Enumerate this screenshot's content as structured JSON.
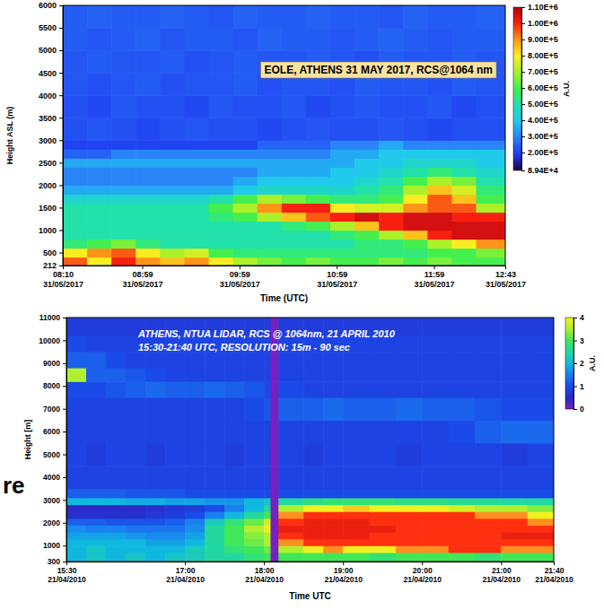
{
  "chart_data": [
    {
      "type": "heatmap",
      "title": "EOLE, ATHENS 31 MAY 2017, RCS@1064 nm",
      "x_label": "Time (UTC)",
      "y_label": "Height ASL (m)",
      "xlim": [
        "2017-05-31 08:10",
        "2017-05-31 12:43"
      ],
      "xticks": [
        {
          "value": "2017-05-31 08:10",
          "label": "08:10\n31/05/2017"
        },
        {
          "value": "2017-05-31 08:59",
          "label": "08:59\n31/05/2017"
        },
        {
          "value": "2017-05-31 09:59",
          "label": "09:59\n31/05/2017"
        },
        {
          "value": "2017-05-31 10:59",
          "label": "10:59\n31/05/2017"
        },
        {
          "value": "2017-05-31 11:59",
          "label": "11:59\n31/05/2017"
        },
        {
          "value": "2017-05-31 12:43",
          "label": "12:43\n31/05/2017"
        }
      ],
      "ylim": [
        212,
        6000
      ],
      "yticks": [
        212,
        500,
        1000,
        1500,
        2000,
        2500,
        3000,
        3500,
        4000,
        4500,
        5000,
        5500,
        6000
      ],
      "x": [
        "2017-05-31 08:10",
        "2017-05-31 08:25",
        "2017-05-31 08:40",
        "2017-05-31 08:55",
        "2017-05-31 09:10",
        "2017-05-31 09:25",
        "2017-05-31 09:40",
        "2017-05-31 09:55",
        "2017-05-31 10:10",
        "2017-05-31 10:25",
        "2017-05-31 10:40",
        "2017-05-31 10:55",
        "2017-05-31 11:10",
        "2017-05-31 11:25",
        "2017-05-31 11:40",
        "2017-05-31 11:55",
        "2017-05-31 12:10",
        "2017-05-31 12:25"
      ],
      "y": [
        212,
        400,
        600,
        800,
        1000,
        1200,
        1400,
        1600,
        1800,
        2000,
        2200,
        2400,
        2600,
        2800,
        3000,
        3500,
        4000,
        4500,
        5000,
        5500
      ],
      "values": [
        [
          950000.0,
          800000.0,
          1000000.0,
          900000.0,
          850000.0,
          900000.0,
          800000.0,
          700000.0,
          650000.0,
          600000.0,
          650000.0,
          600000.0,
          600000.0,
          650000.0,
          600000.0,
          650000.0,
          600000.0,
          600000.0
        ],
        [
          800000.0,
          900000.0,
          950000.0,
          800000.0,
          700000.0,
          750000.0,
          600000.0,
          550000.0,
          550000.0,
          550000.0,
          550000.0,
          550000.0,
          550000.0,
          550000.0,
          550000.0,
          600000.0,
          600000.0,
          650000.0
        ],
        [
          550000.0,
          600000.0,
          650000.0,
          550000.0,
          500000.0,
          500000.0,
          500000.0,
          500000.0,
          500000.0,
          500000.0,
          500000.0,
          500000.0,
          550000.0,
          550000.0,
          600000.0,
          700000.0,
          800000.0,
          900000.0
        ],
        [
          500000.0,
          500000.0,
          500000.0,
          500000.0,
          500000.0,
          500000.0,
          500000.0,
          500000.0,
          500000.0,
          500000.0,
          500000.0,
          550000.0,
          600000.0,
          700000.0,
          850000.0,
          1000000.0,
          1050000.0,
          1050000.0
        ],
        [
          500000.0,
          500000.0,
          500000.0,
          500000.0,
          500000.0,
          500000.0,
          500000.0,
          500000.0,
          500000.0,
          550000.0,
          600000.0,
          700000.0,
          850000.0,
          1000000.0,
          1050000.0,
          1050000.0,
          1050000.0,
          1050000.0
        ],
        [
          500000.0,
          500000.0,
          500000.0,
          500000.0,
          500000.0,
          500000.0,
          550000.0,
          600000.0,
          700000.0,
          850000.0,
          950000.0,
          1000000.0,
          1050000.0,
          1000000.0,
          1050000.0,
          1050000.0,
          1000000.0,
          1000000.0
        ],
        [
          500000.0,
          500000.0,
          500000.0,
          500000.0,
          500000.0,
          500000.0,
          600000.0,
          700000.0,
          900000.0,
          1000000.0,
          1000000.0,
          800000.0,
          750000.0,
          750000.0,
          900000.0,
          950000.0,
          950000.0,
          700000.0
        ],
        [
          450000.0,
          450000.0,
          450000.0,
          450000.0,
          450000.0,
          450000.0,
          500000.0,
          600000.0,
          700000.0,
          650000.0,
          600000.0,
          550000.0,
          550000.0,
          600000.0,
          800000.0,
          950000.0,
          850000.0,
          600000.0
        ],
        [
          350000.0,
          350000.0,
          350000.0,
          350000.0,
          350000.0,
          350000.0,
          350000.0,
          400000.0,
          450000.0,
          450000.0,
          450000.0,
          450000.0,
          500000.0,
          550000.0,
          700000.0,
          850000.0,
          750000.0,
          550000.0
        ],
        [
          300000.0,
          300000.0,
          300000.0,
          300000.0,
          300000.0,
          300000.0,
          300000.0,
          350000.0,
          400000.0,
          400000.0,
          400000.0,
          400000.0,
          450000.0,
          500000.0,
          600000.0,
          700000.0,
          650000.0,
          500000.0
        ],
        [
          300000.0,
          300000.0,
          300000.0,
          300000.0,
          300000.0,
          300000.0,
          300000.0,
          300000.0,
          350000.0,
          350000.0,
          350000.0,
          400000.0,
          400000.0,
          450000.0,
          500000.0,
          550000.0,
          500000.0,
          450000.0
        ],
        [
          350000.0,
          350000.0,
          350000.0,
          350000.0,
          350000.0,
          350000.0,
          350000.0,
          350000.0,
          350000.0,
          350000.0,
          350000.0,
          350000.0,
          400000.0,
          400000.0,
          450000.0,
          450000.0,
          450000.0,
          400000.0
        ],
        [
          250000.0,
          250000.0,
          300000.0,
          300000.0,
          300000.0,
          300000.0,
          300000.0,
          300000.0,
          300000.0,
          300000.0,
          300000.0,
          350000.0,
          350000.0,
          400000.0,
          400000.0,
          400000.0,
          400000.0,
          400000.0
        ],
        [
          200000.0,
          200000.0,
          200000.0,
          200000.0,
          200000.0,
          200000.0,
          200000.0,
          200000.0,
          250000.0,
          250000.0,
          250000.0,
          300000.0,
          300000.0,
          350000.0,
          300000.0,
          300000.0,
          300000.0,
          300000.0
        ],
        [
          220000.0,
          230000.0,
          220000.0,
          210000.0,
          220000.0,
          230000.0,
          220000.0,
          220000.0,
          210000.0,
          220000.0,
          230000.0,
          220000.0,
          220000.0,
          230000.0,
          220000.0,
          210000.0,
          220000.0,
          220000.0
        ],
        [
          220000.0,
          210000.0,
          230000.0,
          220000.0,
          220000.0,
          210000.0,
          230000.0,
          220000.0,
          220000.0,
          230000.0,
          210000.0,
          220000.0,
          230000.0,
          220000.0,
          220000.0,
          230000.0,
          210000.0,
          220000.0
        ],
        [
          230000.0,
          220000.0,
          230000.0,
          240000.0,
          220000.0,
          230000.0,
          230000.0,
          240000.0,
          220000.0,
          230000.0,
          230000.0,
          220000.0,
          240000.0,
          230000.0,
          230000.0,
          220000.0,
          240000.0,
          230000.0
        ],
        [
          230000.0,
          240000.0,
          230000.0,
          230000.0,
          240000.0,
          220000.0,
          230000.0,
          240000.0,
          230000.0,
          230000.0,
          240000.0,
          230000.0,
          220000.0,
          240000.0,
          230000.0,
          230000.0,
          240000.0,
          230000.0
        ],
        [
          240000.0,
          230000.0,
          240000.0,
          250000.0,
          230000.0,
          240000.0,
          240000.0,
          230000.0,
          250000.0,
          240000.0,
          240000.0,
          230000.0,
          240000.0,
          250000.0,
          240000.0,
          230000.0,
          240000.0,
          240000.0
        ],
        [
          240000.0,
          250000.0,
          240000.0,
          240000.0,
          250000.0,
          240000.0,
          230000.0,
          250000.0,
          240000.0,
          240000.0,
          250000.0,
          240000.0,
          240000.0,
          230000.0,
          250000.0,
          240000.0,
          240000.0,
          250000.0
        ]
      ],
      "colorbar_range": [
        89400,
        1100000
      ],
      "colorbar_ticks": [
        {
          "value": 89400,
          "label": "8.94E+4"
        },
        {
          "value": 200000,
          "label": "2.00E+5"
        },
        {
          "value": 300000,
          "label": "3.00E+5"
        },
        {
          "value": 400000,
          "label": "4.00E+5"
        },
        {
          "value": 500000,
          "label": "5.00E+5"
        },
        {
          "value": 600000,
          "label": "6.00E+5"
        },
        {
          "value": 700000,
          "label": "7.00E+5"
        },
        {
          "value": 800000,
          "label": "8.00E+5"
        },
        {
          "value": 900000,
          "label": "9.00E+5"
        },
        {
          "value": 1000000,
          "label": "1.00E+6"
        },
        {
          "value": 1100000,
          "label": "1.10E+6"
        }
      ],
      "colorbar_label": "A.U.",
      "grid": false
    },
    {
      "type": "heatmap",
      "title": "ATHENS, NTUA LIDAR, RCS @ 1064nm, 21 APRIL 2010",
      "subtitle": "15:30-21:40 UTC, RESOLUTION: 15m - 90 sec",
      "x_label": "Time UTC",
      "y_label": "Height [m]",
      "xlim": [
        "2010-04-21 15:30",
        "2010-04-21 21:40"
      ],
      "xticks": [
        {
          "value": "2010-04-21 15:30",
          "label": "15:30\n21/04/2010"
        },
        {
          "value": "2010-04-21 17:00",
          "label": "17:00\n21/04/2010"
        },
        {
          "value": "2010-04-21 18:00",
          "label": "18:00\n21/04/2010"
        },
        {
          "value": "2010-04-21 19:00",
          "label": "19:00\n21/04/2010"
        },
        {
          "value": "2010-04-21 20:00",
          "label": "20:00\n21/04/2010"
        },
        {
          "value": "2010-04-21 21:00",
          "label": "21:00\n21/04/2010"
        },
        {
          "value": "2010-04-21 21:40",
          "label": "21:40\n21/04/2010"
        }
      ],
      "ylim": [
        300,
        11000
      ],
      "yticks": [
        300,
        1000,
        2000,
        3000,
        4000,
        5000,
        6000,
        7000,
        8000,
        9000,
        10000,
        11000
      ],
      "x": [
        "2010-04-21 15:30",
        "2010-04-21 15:45",
        "2010-04-21 16:00",
        "2010-04-21 16:15",
        "2010-04-21 16:30",
        "2010-04-21 16:45",
        "2010-04-21 17:00",
        "2010-04-21 17:15",
        "2010-04-21 17:30",
        "2010-04-21 17:45",
        "2010-04-21 18:00",
        "2010-04-21 18:05",
        "2010-04-21 18:11",
        "2010-04-21 18:30",
        "2010-04-21 18:45",
        "2010-04-21 19:00",
        "2010-04-21 19:20",
        "2010-04-21 19:40",
        "2010-04-21 20:00",
        "2010-04-21 20:20",
        "2010-04-21 20:40",
        "2010-04-21 21:00",
        "2010-04-21 21:20"
      ],
      "y": [
        300,
        700,
        1000,
        1300,
        1600,
        1900,
        2200,
        2500,
        2800,
        3100,
        3500,
        4500,
        5500,
        6500,
        7500,
        8200,
        8800,
        9500,
        10200
      ],
      "values": [
        [
          2,
          2.2,
          2,
          2.2,
          2,
          2.2,
          2.3,
          2.5,
          2.5,
          2.8,
          3,
          0,
          3,
          3,
          3,
          3,
          2.8,
          3,
          3,
          3,
          2.8,
          3,
          3
        ],
        [
          2,
          2.2,
          2,
          2,
          2,
          2,
          2.3,
          2.5,
          2.8,
          3,
          3.2,
          0,
          3.5,
          4,
          4.5,
          4,
          4,
          4.5,
          4.5,
          5,
          5,
          4.5,
          4.5
        ],
        [
          2,
          2,
          2,
          2,
          1.8,
          1.8,
          2,
          2.5,
          3,
          3.2,
          3.5,
          0,
          4.5,
          5,
          5,
          5,
          5,
          5,
          5,
          5,
          5,
          5,
          5
        ],
        [
          1.8,
          1.8,
          1.8,
          1.7,
          1.6,
          1.6,
          1.8,
          2.5,
          3,
          3.3,
          3.5,
          0,
          5,
          5.5,
          5.5,
          5.5,
          5,
          5,
          5,
          5,
          5,
          5.5,
          5.5
        ],
        [
          1.6,
          1.5,
          1.5,
          1.4,
          1.4,
          1.4,
          1.6,
          2.5,
          3,
          3.5,
          4,
          0,
          5.5,
          5.5,
          5.5,
          5.5,
          5.5,
          5,
          5,
          5,
          5,
          5,
          5
        ],
        [
          1.2,
          1.2,
          1.1,
          1.1,
          1.1,
          1.2,
          1.5,
          2.3,
          2.8,
          3.2,
          3.8,
          0,
          5,
          5.5,
          5.5,
          5.5,
          5,
          5,
          5,
          5,
          5,
          5,
          4.5
        ],
        [
          0.6,
          0.6,
          0.6,
          0.6,
          0.7,
          0.8,
          1,
          1.5,
          2,
          2.5,
          3,
          0,
          4.5,
          5,
          5,
          5,
          5,
          5,
          5,
          5,
          4.5,
          4.5,
          4
        ],
        [
          0.5,
          0.5,
          0.5,
          0.5,
          0.6,
          0.7,
          0.8,
          1,
          1.5,
          2,
          2.5,
          0,
          3.5,
          4,
          4,
          4.2,
          4,
          4,
          4,
          3.8,
          3.5,
          3.5,
          3.3
        ],
        [
          2,
          2,
          2,
          1.9,
          1.9,
          1.8,
          1.8,
          1.7,
          1.7,
          2,
          2.2,
          0,
          2.5,
          2.7,
          2.8,
          2.8,
          2.8,
          2.7,
          2.7,
          2.6,
          2.6,
          2.5,
          2.5
        ],
        [
          1.2,
          1.2,
          1.2,
          1.1,
          1.1,
          1.1,
          1,
          1,
          1,
          1,
          1,
          0,
          1,
          1,
          1,
          1,
          1,
          1,
          1,
          1,
          1,
          1,
          1
        ],
        [
          0.9,
          0.9,
          0.9,
          0.9,
          0.9,
          0.9,
          0.9,
          0.9,
          0.9,
          0.9,
          0.9,
          0,
          0.9,
          0.9,
          0.9,
          0.9,
          0.9,
          0.9,
          0.9,
          0.9,
          0.9,
          0.9,
          0.9
        ],
        [
          0.9,
          0.8,
          0.9,
          0.9,
          0.8,
          0.9,
          0.9,
          0.9,
          0.8,
          0.9,
          0.9,
          0,
          0.9,
          0.8,
          0.9,
          0.9,
          0.9,
          0.8,
          0.9,
          0.9,
          0.9,
          0.8,
          0.9
        ],
        [
          0.9,
          0.9,
          0.9,
          0.9,
          0.9,
          0.9,
          0.9,
          0.9,
          0.9,
          0.9,
          0.9,
          0,
          0.9,
          0.9,
          0.9,
          0.9,
          0.9,
          0.9,
          0.9,
          1,
          1.2,
          1.3,
          1.3
        ],
        [
          0.9,
          0.9,
          0.9,
          0.9,
          0.9,
          0.9,
          0.9,
          0.9,
          0.9,
          1,
          1.1,
          0,
          1.2,
          1.2,
          1.3,
          1.2,
          1.2,
          1.3,
          1.2,
          1.2,
          1.1,
          1,
          1
        ],
        [
          1,
          1,
          1.1,
          1.2,
          1.3,
          1.2,
          1.2,
          1.3,
          1.2,
          1.1,
          1,
          0,
          1,
          0.9,
          0.9,
          0.9,
          0.9,
          0.9,
          0.9,
          0.9,
          0.9,
          0.9,
          0.9
        ],
        [
          3.5,
          1.2,
          1.2,
          1.1,
          1,
          0.9,
          0.9,
          0.9,
          0.9,
          0.9,
          0.9,
          0,
          0.9,
          0.9,
          0.9,
          0.9,
          0.9,
          0.9,
          0.9,
          0.9,
          0.9,
          0.9,
          0.9
        ],
        [
          1.2,
          1.2,
          1,
          0.9,
          0.9,
          0.9,
          0.9,
          0.9,
          0.9,
          0.9,
          0.9,
          0,
          0.9,
          0.9,
          0.9,
          0.9,
          0.9,
          0.9,
          0.9,
          0.9,
          0.9,
          0.9,
          0.9
        ],
        [
          1,
          0.9,
          0.9,
          0.9,
          0.9,
          0.9,
          0.9,
          0.9,
          0.9,
          0.9,
          0.9,
          0,
          0.9,
          0.9,
          0.9,
          0.9,
          0.9,
          0.9,
          0.9,
          0.9,
          0.9,
          0.9,
          0.9
        ],
        [
          0.8,
          0.8,
          0.8,
          0.8,
          0.8,
          0.8,
          0.8,
          0.8,
          0.8,
          0.8,
          0.8,
          0,
          0.8,
          0.8,
          0.8,
          0.8,
          0.8,
          0.8,
          0.8,
          0.8,
          0.8,
          0.8,
          0.8
        ]
      ],
      "colorbar_range": [
        0,
        4
      ],
      "colorbar_ticks": [
        0,
        1,
        2,
        3,
        4
      ],
      "colorbar_label": "A.U.",
      "grid": false
    }
  ],
  "fragment_text": "re"
}
